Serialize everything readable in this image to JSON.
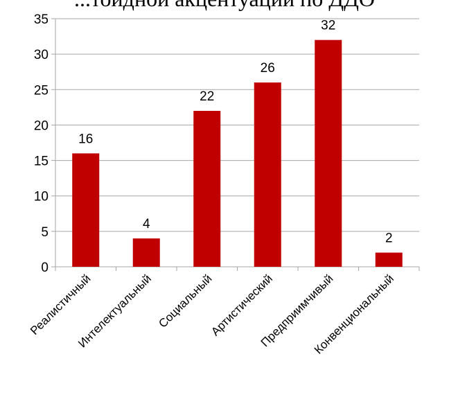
{
  "chart_data": {
    "type": "bar",
    "title": "...тоидной акцентуации по ДДО",
    "xlabel": "",
    "ylabel": "",
    "categories": [
      "Реалистичный",
      "Интелектуальный",
      "Социальный",
      "Артистический",
      "Предприимчивый",
      "Конвенциональный"
    ],
    "values": [
      16,
      4,
      22,
      26,
      32,
      2
    ],
    "ylim": [
      0,
      35
    ],
    "yticks": [
      0,
      5,
      10,
      15,
      20,
      25,
      30,
      35
    ],
    "grid": true,
    "legend": "none",
    "bar_color": "#c00000",
    "grid_color": "#a6a6a6"
  }
}
